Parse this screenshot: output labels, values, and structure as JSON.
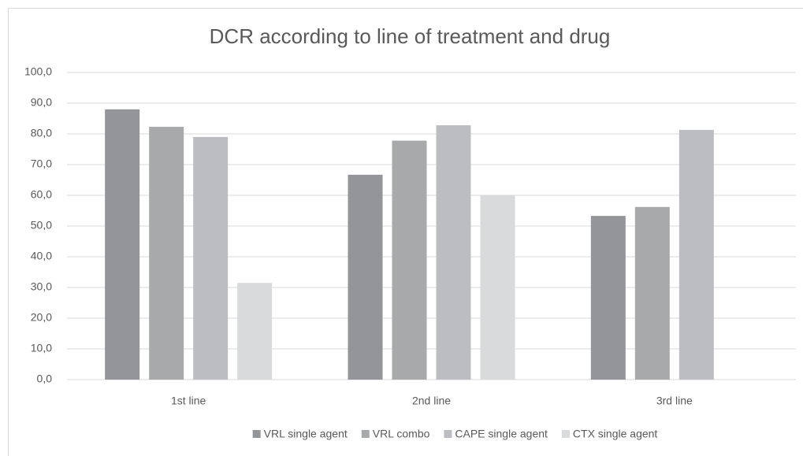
{
  "chart_data": {
    "type": "bar",
    "title": "DCR according to line of treatment and drug",
    "categories": [
      "1st line",
      "2nd line",
      "3rd line"
    ],
    "series": [
      {
        "name": "VRL single agent",
        "color": "#939598",
        "values": [
          88.0,
          66.7,
          53.3
        ]
      },
      {
        "name": "VRL combo",
        "color": "#a7a9ab",
        "values": [
          82.3,
          77.8,
          56.2
        ]
      },
      {
        "name": "CAPE single agent",
        "color": "#bbbdc0",
        "values": [
          79.0,
          82.8,
          81.3
        ]
      },
      {
        "name": "CTX single agent",
        "color": "#d9dadc",
        "values": [
          31.5,
          60.0,
          null
        ]
      }
    ],
    "ylim": [
      0,
      100
    ],
    "yticks": [
      {
        "value": 0,
        "label": "0,0"
      },
      {
        "value": 10,
        "label": "10,0"
      },
      {
        "value": 20,
        "label": "20,0"
      },
      {
        "value": 30,
        "label": "30,0"
      },
      {
        "value": 40,
        "label": "40,0"
      },
      {
        "value": 50,
        "label": "50,0"
      },
      {
        "value": 60,
        "label": "60,0"
      },
      {
        "value": 70,
        "label": "70,0"
      },
      {
        "value": 80,
        "label": "80,0"
      },
      {
        "value": 90,
        "label": "90,0"
      },
      {
        "value": 100,
        "label": "100,0"
      }
    ],
    "grid": true,
    "legend": "bottom"
  }
}
